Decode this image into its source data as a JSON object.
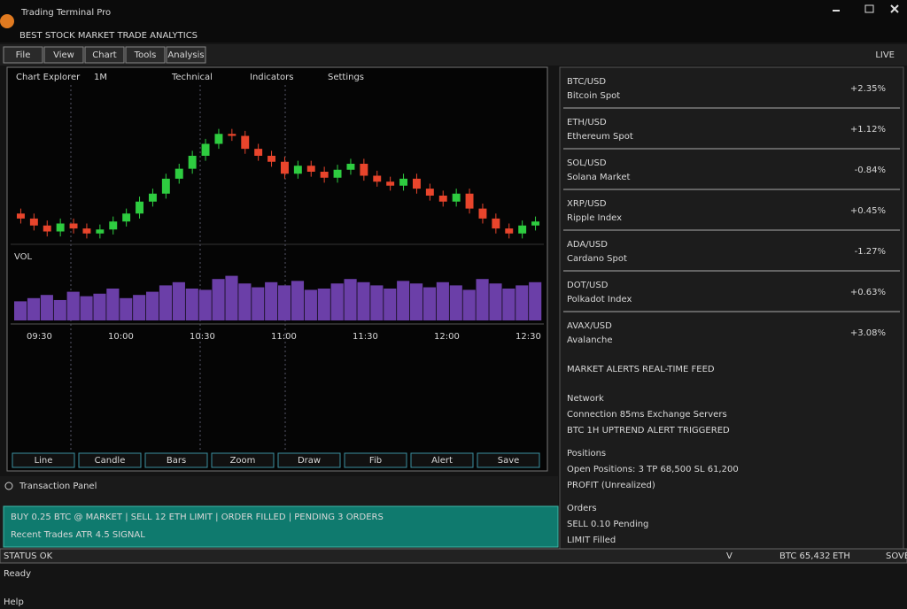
{
  "app": {
    "title": "Trading Terminal Pro",
    "subtitle": "BEST STOCK MARKET TRADE ANALYTICS"
  },
  "toolbar": [
    "File",
    "View",
    "Chart",
    "Tools",
    "Analysis"
  ],
  "toolbar_right": "LIVE",
  "chart_panel": {
    "header": [
      "Chart Explorer",
      "1M",
      "Technical",
      "Indicators",
      "Settings"
    ],
    "indicator_label": "VOL",
    "time_labels": [
      "09:30",
      "10:00",
      "10:30",
      "11:00",
      "11:30",
      "12:00",
      "12:30"
    ],
    "buttons": [
      "Line",
      "Candle",
      "Bars",
      "Zoom",
      "Draw",
      "Fib",
      "Alert",
      "Save"
    ]
  },
  "price_chart": {
    "type": "candlestick",
    "open": [
      60,
      55,
      48,
      42,
      50,
      45,
      40,
      44,
      52,
      60,
      72,
      80,
      95,
      105,
      118,
      130,
      140,
      138,
      125,
      118,
      112,
      100,
      108,
      102,
      96,
      104,
      110,
      98,
      92,
      88,
      95,
      85,
      78,
      72,
      80,
      65,
      55,
      45,
      40,
      48
    ],
    "high": [
      65,
      60,
      53,
      55,
      55,
      50,
      49,
      57,
      65,
      77,
      85,
      100,
      110,
      123,
      135,
      145,
      145,
      143,
      130,
      123,
      117,
      113,
      113,
      107,
      109,
      115,
      115,
      103,
      97,
      100,
      100,
      90,
      83,
      85,
      85,
      70,
      60,
      50,
      53,
      57
    ],
    "low": [
      50,
      43,
      37,
      37,
      40,
      35,
      35,
      39,
      47,
      55,
      67,
      75,
      90,
      100,
      113,
      125,
      133,
      120,
      113,
      107,
      95,
      95,
      97,
      91,
      91,
      99,
      93,
      87,
      83,
      83,
      80,
      73,
      67,
      67,
      60,
      50,
      40,
      35,
      35,
      43
    ],
    "close": [
      55,
      48,
      42,
      50,
      45,
      40,
      44,
      52,
      60,
      72,
      80,
      95,
      105,
      118,
      130,
      140,
      138,
      125,
      118,
      112,
      100,
      108,
      102,
      96,
      104,
      110,
      98,
      92,
      88,
      95,
      85,
      78,
      72,
      80,
      65,
      55,
      45,
      40,
      48,
      52
    ],
    "ylim": [
      30,
      150
    ],
    "up_color": "#2ecc40",
    "down_color": "#e8452c"
  },
  "volume_chart": {
    "type": "bar",
    "values": [
      30,
      35,
      40,
      32,
      45,
      38,
      42,
      50,
      35,
      40,
      45,
      55,
      60,
      50,
      48,
      65,
      70,
      58,
      52,
      60,
      55,
      62,
      48,
      50,
      58,
      65,
      60,
      55,
      50,
      62,
      58,
      52,
      60,
      55,
      48,
      65,
      58,
      50,
      55,
      60
    ],
    "ylim": [
      0,
      100
    ],
    "color": "#6b3fa8"
  },
  "log_panel": {
    "title": "Transaction Panel",
    "lines": [
      "BUY 0.25 BTC @ MARKET  |  SELL 12 ETH LIMIT  |  ORDER FILLED  |  PENDING 3 ORDERS",
      "Recent Trades  ATR 4.5  SIGNAL"
    ]
  },
  "watchlist": [
    {
      "name": "BTC/USD",
      "sub": "Bitcoin Spot",
      "value": "+2.35%"
    },
    {
      "name": "ETH/USD",
      "sub": "Ethereum Spot",
      "value": "+1.12%"
    },
    {
      "name": "SOL/USD",
      "sub": "Solana Market",
      "value": "-0.84%"
    },
    {
      "name": "XRP/USD",
      "sub": "Ripple Index",
      "value": "+0.45%"
    },
    {
      "name": "ADA/USD",
      "sub": "Cardano Spot",
      "value": "-1.27%"
    },
    {
      "name": "DOT/USD",
      "sub": "Polkadot Index",
      "value": "+0.63%"
    },
    {
      "name": "AVAX/USD",
      "sub": "Avalanche",
      "value": "+3.08%"
    }
  ],
  "alerts": {
    "title": "MARKET ALERTS  REAL-TIME FEED",
    "sections": [
      {
        "heading": "Network",
        "lines": [
          "Connection 85ms  Exchange Servers",
          "BTC 1H  UPTREND  ALERT TRIGGERED"
        ]
      },
      {
        "heading": "Positions",
        "lines": [
          "Open Positions: 3   TP 68,500   SL 61,200",
          "PROFIT (Unrealized)"
        ]
      },
      {
        "heading": "Orders",
        "lines": [
          "SELL 0.10  Pending",
          "LIMIT  Filled"
        ]
      }
    ]
  },
  "status": {
    "left": "STATUS OK",
    "items": [
      "V",
      "BTC 65,432",
      "ETH",
      "SOVEREIGN"
    ]
  },
  "footer": [
    "Ready",
    "Help"
  ]
}
